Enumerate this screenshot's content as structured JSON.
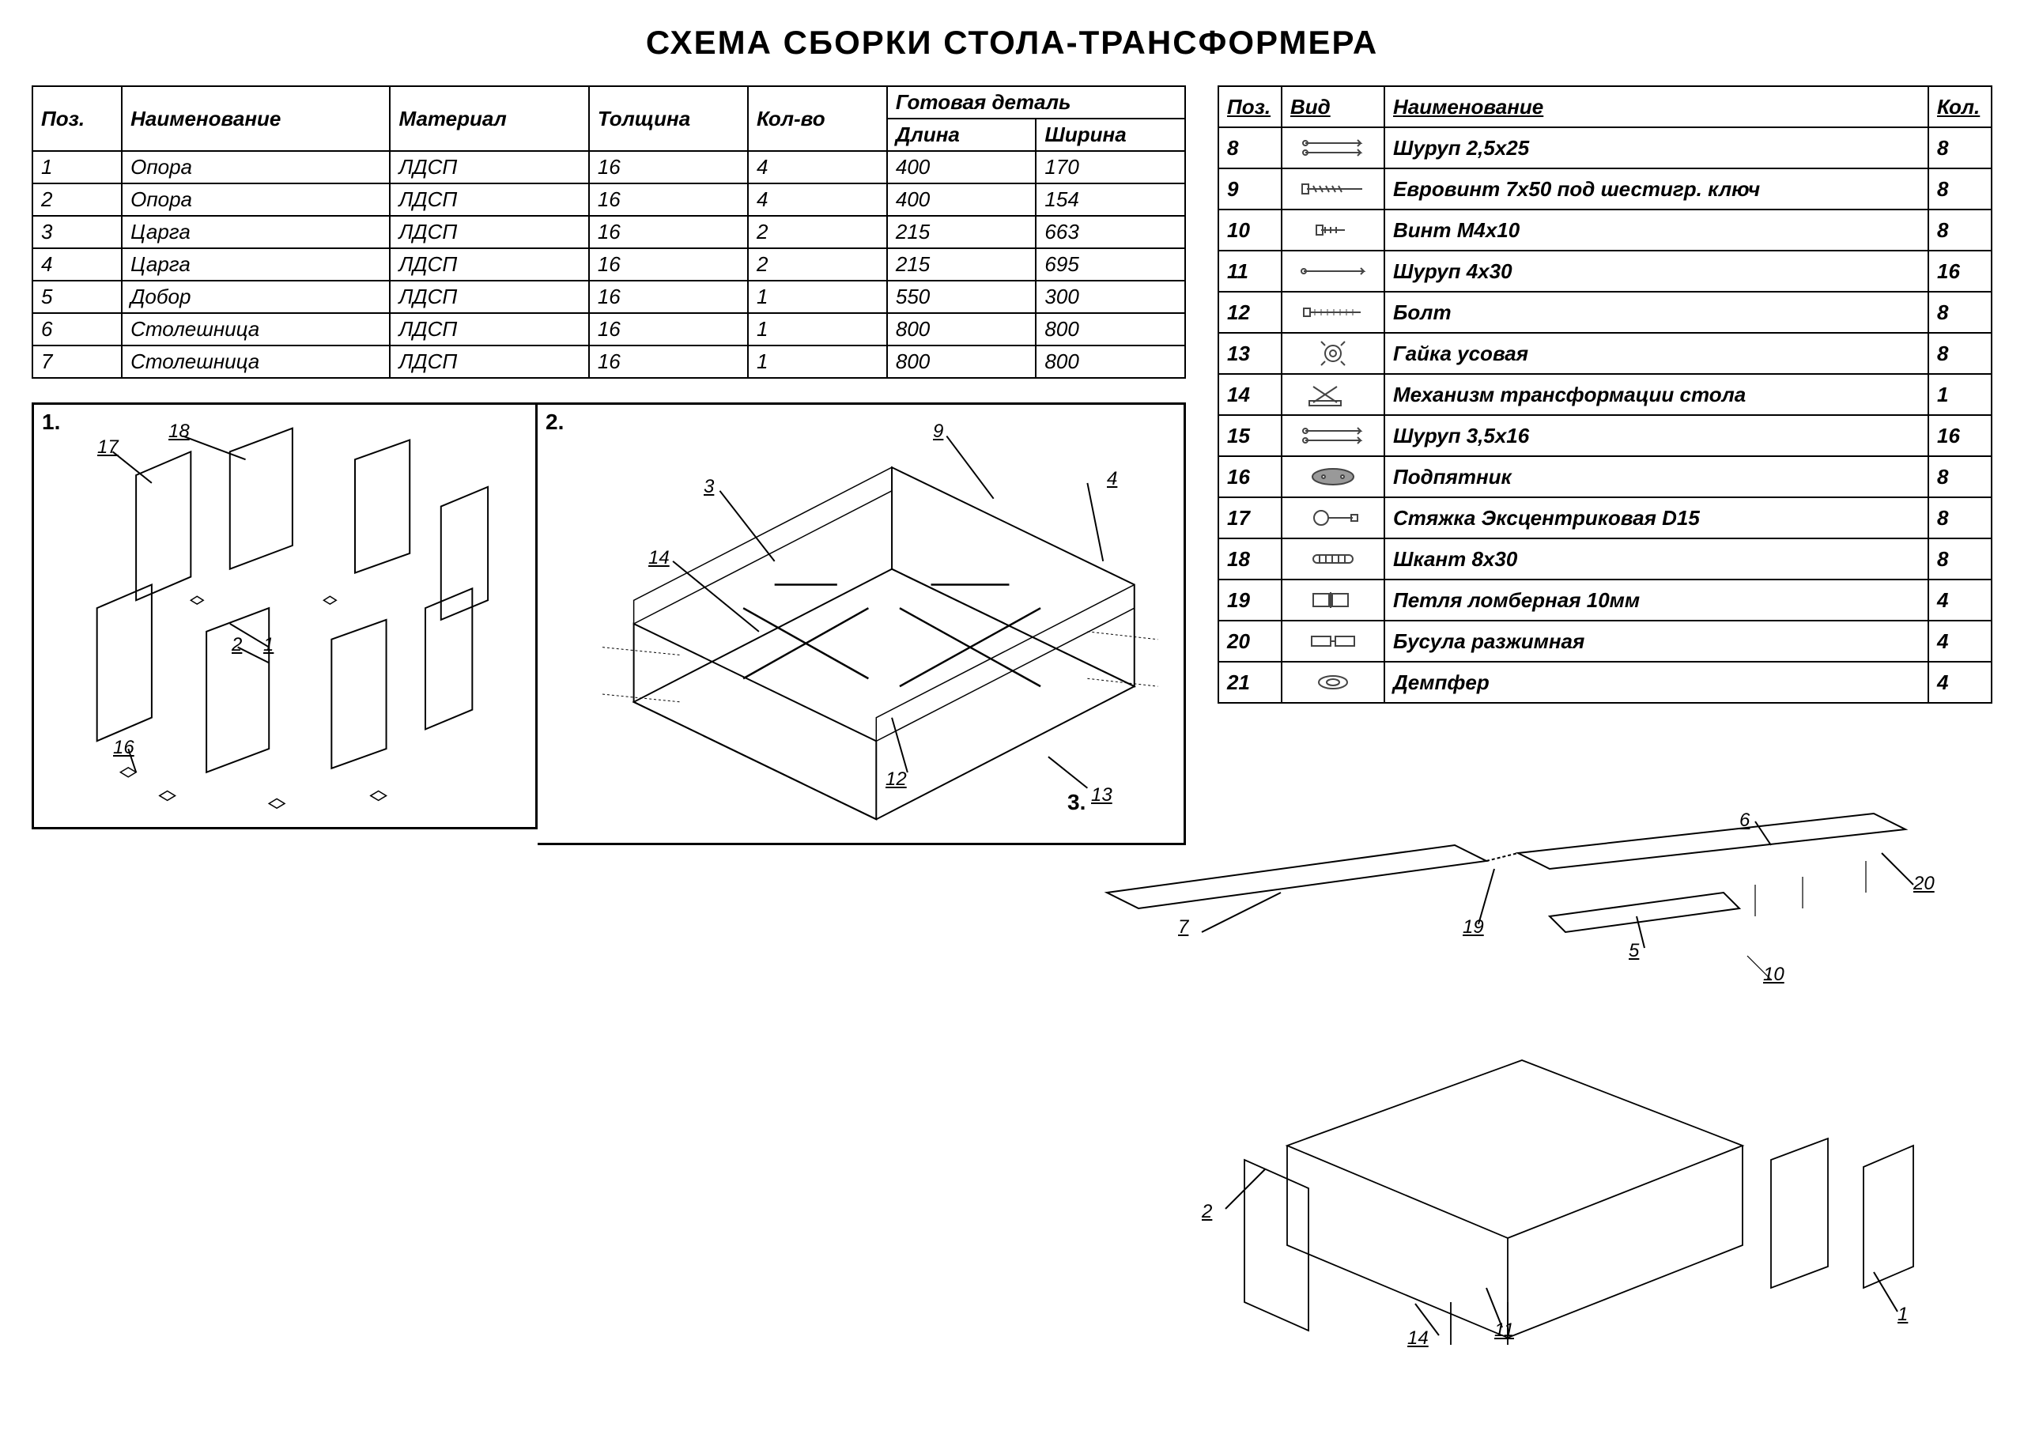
{
  "title": "СХЕМА СБОРКИ  СТОЛА-ТРАНСФОРМЕРА",
  "partsTable": {
    "headers": {
      "pos": "Поз.",
      "name": "Наименование",
      "material": "Материал",
      "thickness": "Толщина",
      "qty": "Кол-во",
      "finished": "Готовая деталь",
      "length": "Длина",
      "width": "Ширина"
    },
    "rows": [
      {
        "pos": "1",
        "name": "Опора",
        "material": "ЛДСП",
        "thickness": "16",
        "qty": "4",
        "length": "400",
        "width": "170"
      },
      {
        "pos": "2",
        "name": "Опора",
        "material": "ЛДСП",
        "thickness": "16",
        "qty": "4",
        "length": "400",
        "width": "154"
      },
      {
        "pos": "3",
        "name": "Царга",
        "material": "ЛДСП",
        "thickness": "16",
        "qty": "2",
        "length": "215",
        "width": "663"
      },
      {
        "pos": "4",
        "name": "Царга",
        "material": "ЛДСП",
        "thickness": "16",
        "qty": "2",
        "length": "215",
        "width": "695"
      },
      {
        "pos": "5",
        "name": "Добор",
        "material": "ЛДСП",
        "thickness": "16",
        "qty": "1",
        "length": "550",
        "width": "300"
      },
      {
        "pos": "6",
        "name": "Столешница",
        "material": "ЛДСП",
        "thickness": "16",
        "qty": "1",
        "length": "800",
        "width": "800"
      },
      {
        "pos": "7",
        "name": "Столешница",
        "material": "ЛДСП",
        "thickness": "16",
        "qty": "1",
        "length": "800",
        "width": "800"
      }
    ]
  },
  "hardwareTable": {
    "headers": {
      "pos": "Поз.",
      "view": "Вид",
      "name": "Наименование",
      "qty": "Кол."
    },
    "rows": [
      {
        "pos": "8",
        "icon": "screw",
        "name": "Шуруп 2,5х25",
        "qty": "8"
      },
      {
        "pos": "9",
        "icon": "confirmat",
        "name": "Евровинт 7х50 под шестигр. ключ",
        "qty": "8"
      },
      {
        "pos": "10",
        "icon": "bolt-small",
        "name": "Винт М4х10",
        "qty": "8"
      },
      {
        "pos": "11",
        "icon": "screw-long",
        "name": "Шуруп 4х30",
        "qty": "16"
      },
      {
        "pos": "12",
        "icon": "bolt-long",
        "name": "Болт",
        "qty": "8"
      },
      {
        "pos": "13",
        "icon": "tnut",
        "name": "Гайка усовая",
        "qty": "8"
      },
      {
        "pos": "14",
        "icon": "mechanism",
        "name": "Механизм трансформации стола",
        "qty": "1"
      },
      {
        "pos": "15",
        "icon": "screw",
        "name": "Шуруп 3,5х16",
        "qty": "16"
      },
      {
        "pos": "16",
        "icon": "pad",
        "name": "Подпятник",
        "qty": "8"
      },
      {
        "pos": "17",
        "icon": "cam",
        "name": "Стяжка Эксцентриковая D15",
        "qty": "8"
      },
      {
        "pos": "18",
        "icon": "dowel",
        "name": "Шкант 8х30",
        "qty": "8"
      },
      {
        "pos": "19",
        "icon": "hinge",
        "name": "Петля ломберная 10мм",
        "qty": "4"
      },
      {
        "pos": "20",
        "icon": "latch",
        "name": "Бусула разжимная",
        "qty": "4"
      },
      {
        "pos": "21",
        "icon": "damper",
        "name": "Демпфер",
        "qty": "4"
      }
    ]
  },
  "diagrams": {
    "d1": {
      "label": "1.",
      "callouts": [
        "17",
        "18",
        "2",
        "1",
        "16"
      ]
    },
    "d2": {
      "label": "2.",
      "callouts": [
        "3",
        "14",
        "9",
        "4",
        "12",
        "13"
      ]
    },
    "d3": {
      "label": "3.",
      "callouts": [
        "7",
        "19",
        "5",
        "6",
        "20",
        "2",
        "10",
        "11",
        "1",
        "14"
      ]
    }
  },
  "style": {
    "line_color": "#000000",
    "line_width": 2,
    "bg": "#ffffff",
    "font_italic": true,
    "title_fontsize": 42,
    "table_fontsize": 26
  }
}
